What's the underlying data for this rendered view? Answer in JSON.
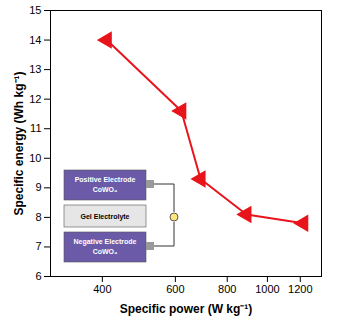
{
  "chart_data": {
    "type": "line",
    "x_label": "Specific power (W kg⁻¹)",
    "y_label": "Specific energy (Wh kg⁻¹)",
    "x": [
      410,
      620,
      690,
      890,
      1220
    ],
    "values": [
      14.0,
      11.6,
      9.3,
      8.1,
      7.8
    ],
    "color": "#e8141c",
    "marker": "triangle-left",
    "log": "x",
    "xlim": [
      300,
      1350
    ],
    "xticks": [
      400,
      600,
      800,
      1000,
      1200
    ],
    "ylim": [
      6,
      15
    ],
    "yticks": [
      6,
      7,
      8,
      9,
      10,
      11,
      12,
      13,
      14,
      15
    ],
    "grid": false,
    "annotations": [
      "Positive Electrode",
      "CoWO₄",
      "Gel Electrolyte",
      "Negative Electrode",
      "CoWO₄"
    ]
  }
}
